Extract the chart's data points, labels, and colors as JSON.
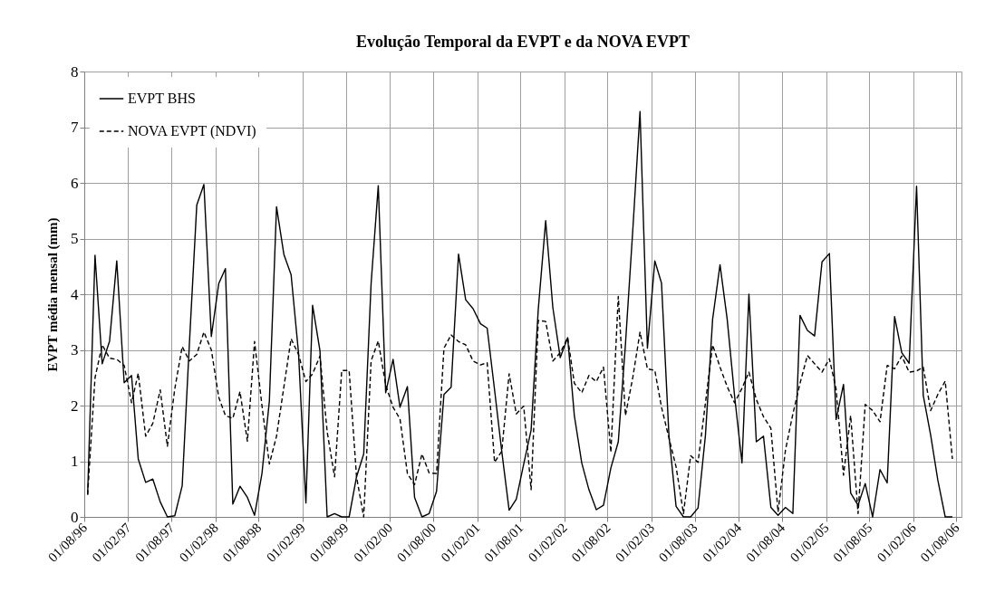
{
  "chart_data": {
    "type": "line",
    "title": "Evolução Temporal da EVPT e da NOVA EVPT",
    "ylabel": "EVPT média mensal (mm)",
    "x": [
      "1996-08-15",
      "1996-09-15",
      "1996-10-15",
      "1996-11-15",
      "1996-12-15",
      "1997-01-15",
      "1997-02-15",
      "1997-03-15",
      "1997-04-15",
      "1997-05-15",
      "1997-06-15",
      "1997-07-15",
      "1997-08-15",
      "1997-09-15",
      "1997-10-15",
      "1997-11-15",
      "1997-12-15",
      "1998-01-15",
      "1998-02-15",
      "1998-03-15",
      "1998-04-15",
      "1998-05-15",
      "1998-06-15",
      "1998-07-15",
      "1998-08-15",
      "1998-09-15",
      "1998-10-15",
      "1998-11-15",
      "1998-12-15",
      "1999-01-15",
      "1999-02-15",
      "1999-03-15",
      "1999-04-15",
      "1999-05-15",
      "1999-06-15",
      "1999-07-15",
      "1999-08-15",
      "1999-09-15",
      "1999-10-15",
      "1999-11-15",
      "1999-12-15",
      "2000-01-15",
      "2000-02-15",
      "2000-03-15",
      "2000-04-15",
      "2000-05-15",
      "2000-06-15",
      "2000-07-15",
      "2000-08-15",
      "2000-09-15",
      "2000-10-15",
      "2000-11-15",
      "2000-12-15",
      "2001-01-15",
      "2001-02-15",
      "2001-03-15",
      "2001-04-15",
      "2001-05-15",
      "2001-06-15",
      "2001-07-15",
      "2001-08-15",
      "2001-09-15",
      "2001-10-15",
      "2001-11-15",
      "2001-12-15",
      "2002-01-15",
      "2002-02-15",
      "2002-03-15",
      "2002-04-15",
      "2002-05-15",
      "2002-06-15",
      "2002-07-15",
      "2002-08-15",
      "2002-09-15",
      "2002-10-15",
      "2002-11-15",
      "2002-12-15",
      "2003-01-15",
      "2003-02-15",
      "2003-03-15",
      "2003-04-15",
      "2003-05-15",
      "2003-06-15",
      "2003-07-15",
      "2003-08-15",
      "2003-09-15",
      "2003-10-15",
      "2003-11-15",
      "2003-12-15",
      "2004-01-15",
      "2004-02-15",
      "2004-03-15",
      "2004-04-15",
      "2004-05-15",
      "2004-06-15",
      "2004-07-15",
      "2004-08-15",
      "2004-09-15",
      "2004-10-15",
      "2004-11-15",
      "2004-12-15",
      "2005-01-15",
      "2005-02-15",
      "2005-03-15",
      "2005-04-15",
      "2005-05-15",
      "2005-06-15",
      "2005-07-15",
      "2005-08-15",
      "2005-09-15",
      "2005-10-15",
      "2005-11-15",
      "2005-12-15",
      "2006-01-15",
      "2006-02-15",
      "2006-03-15",
      "2006-04-15",
      "2006-05-15",
      "2006-06-15",
      "2006-07-15"
    ],
    "series": [
      {
        "name": "EVPT BHS",
        "color": "#000000",
        "line_style": "solid",
        "values": [
          0.4,
          4.7,
          2.75,
          3.16,
          4.6,
          2.41,
          2.54,
          1.04,
          0.62,
          0.68,
          0.27,
          0,
          0.02,
          0.56,
          3.1,
          5.6,
          5.97,
          3.24,
          4.19,
          4.46,
          0.23,
          0.55,
          0.35,
          0.03,
          0.78,
          2.08,
          5.57,
          4.71,
          4.35,
          2.95,
          0.25,
          3.8,
          2.98,
          0,
          0.06,
          0,
          0,
          0.72,
          1.13,
          4.19,
          5.95,
          2.23,
          2.83,
          1.97,
          2.34,
          0.35,
          0,
          0.06,
          0.46,
          2.2,
          2.33,
          4.72,
          3.9,
          3.74,
          3.47,
          3.39,
          2.28,
          1.18,
          0.12,
          0.32,
          0.95,
          1.56,
          3.73,
          5.32,
          3.76,
          2.86,
          3.22,
          1.82,
          0.97,
          0.49,
          0.13,
          0.21,
          0.88,
          1.35,
          3.1,
          5.17,
          7.28,
          3.03,
          4.6,
          4.2,
          1.47,
          0.19,
          0,
          0,
          0.16,
          1.47,
          3.55,
          4.53,
          3.55,
          2.17,
          0.97,
          4.0,
          1.35,
          1.45,
          0.17,
          0.03,
          0.17,
          0.06,
          3.62,
          3.35,
          3.25,
          4.58,
          4.73,
          1.75,
          2.38,
          0.43,
          0.21,
          0.6,
          0,
          0.85,
          0.61,
          3.6,
          2.95,
          2.76,
          5.94,
          2.18,
          1.47,
          0.66,
          0,
          0
        ]
      },
      {
        "name": "NOVA EVPT (NDVI)",
        "color": "#000000",
        "line_style": "dashed",
        "values": [
          0.4,
          2.5,
          3.09,
          2.85,
          2.83,
          2.72,
          2.05,
          2.58,
          1.45,
          1.68,
          2.28,
          1.27,
          2.3,
          3.06,
          2.8,
          2.92,
          3.32,
          3.0,
          2.15,
          1.82,
          1.77,
          2.25,
          1.36,
          3.15,
          2.0,
          0.95,
          1.45,
          2.34,
          3.2,
          2.92,
          2.43,
          2.57,
          2.89,
          1.53,
          0.72,
          2.63,
          2.63,
          0.72,
          0,
          2.8,
          3.16,
          2.37,
          1.97,
          1.76,
          0.78,
          0.58,
          1.13,
          0.79,
          0.78,
          3.03,
          3.27,
          3.15,
          3.09,
          2.8,
          2.73,
          2.77,
          0.98,
          1.18,
          2.57,
          1.85,
          1.99,
          0.49,
          3.53,
          3.51,
          2.8,
          2.95,
          3.22,
          2.4,
          2.23,
          2.54,
          2.43,
          2.69,
          1.16,
          3.96,
          1.82,
          2.51,
          3.32,
          2.66,
          2.63,
          1.97,
          1.42,
          0.9,
          0.06,
          1.1,
          0.98,
          2.05,
          3.09,
          2.69,
          2.34,
          2.05,
          2.31,
          2.6,
          2.11,
          1.8,
          1.59,
          0.09,
          1.2,
          1.85,
          2.4,
          2.9,
          2.75,
          2.6,
          2.84,
          2.3,
          0.75,
          1.82,
          0.06,
          2.02,
          1.91,
          1.71,
          2.72,
          2.66,
          2.89,
          2.6,
          2.62,
          2.69,
          1.91,
          2.2,
          2.44,
          1.04
        ]
      }
    ],
    "xlim": [
      "1996-08-01",
      "2006-08-22"
    ],
    "xticks": [
      {
        "value": "1996-08-01",
        "label": "01/08/96"
      },
      {
        "value": "1997-02-01",
        "label": "01/02/97"
      },
      {
        "value": "1997-08-01",
        "label": "01/08/97"
      },
      {
        "value": "1998-02-01",
        "label": "01/02/98"
      },
      {
        "value": "1998-08-01",
        "label": "01/08/98"
      },
      {
        "value": "1999-02-01",
        "label": "01/02/99"
      },
      {
        "value": "1999-08-01",
        "label": "01/08/99"
      },
      {
        "value": "2000-02-01",
        "label": "01/02/00"
      },
      {
        "value": "2000-08-01",
        "label": "01/08/00"
      },
      {
        "value": "2001-02-01",
        "label": "01/02/01"
      },
      {
        "value": "2001-08-01",
        "label": "01/08/01"
      },
      {
        "value": "2002-02-01",
        "label": "01/02/02"
      },
      {
        "value": "2002-08-01",
        "label": "01/08/02"
      },
      {
        "value": "2003-02-01",
        "label": "01/02/03"
      },
      {
        "value": "2003-08-01",
        "label": "01/08/03"
      },
      {
        "value": "2004-02-01",
        "label": "01/02/04"
      },
      {
        "value": "2004-08-01",
        "label": "01/08/04"
      },
      {
        "value": "2005-02-01",
        "label": "01/02/05"
      },
      {
        "value": "2005-08-01",
        "label": "01/08/05"
      },
      {
        "value": "2006-02-01",
        "label": "01/02/06"
      },
      {
        "value": "2006-08-01",
        "label": "01/08/06"
      }
    ],
    "ylim": [
      0,
      8
    ],
    "yticks": [
      0,
      1,
      2,
      3,
      4,
      5,
      6,
      7,
      8
    ],
    "grid": true,
    "legend": "top left",
    "marker": "none"
  }
}
